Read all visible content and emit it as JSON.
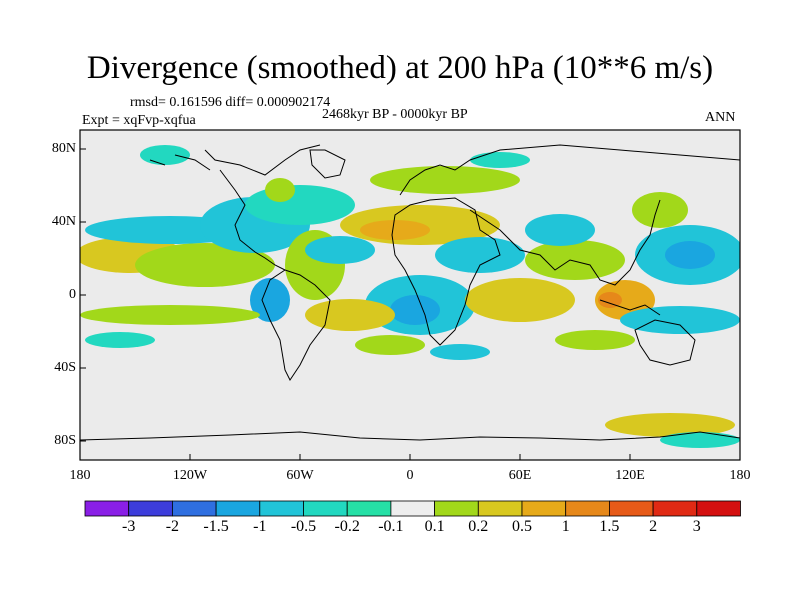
{
  "map": {
    "title": "Divergence (smoothed) at 200 hPa (10**6 m/s)",
    "stats": "rmsd= 0.161596 diff= 0.000902174",
    "period": "2468kyr BP - 0000kyr BP",
    "expt": "Expt = xqFvp-xqfua",
    "season": "ANN",
    "lat_ticks": [
      "80N",
      "40N",
      "0",
      "40S",
      "80S"
    ],
    "lon_ticks": [
      "180",
      "120W",
      "60W",
      "0",
      "60E",
      "120E",
      "180"
    ]
  },
  "legend": {
    "labels": [
      "-3",
      "-2",
      "-1.5",
      "-1",
      "-0.5",
      "-0.2",
      "-0.1",
      "0.1",
      "0.2",
      "0.5",
      "1",
      "1.5",
      "2",
      "3"
    ],
    "colors": [
      "#8a1fe6",
      "#3d3ddb",
      "#2f6fe0",
      "#1aa6e0",
      "#21c4d8",
      "#22d8c0",
      "#26e0a6",
      "#eeeeee",
      "#a2d81a",
      "#d8c820",
      "#e6aa1a",
      "#e6881a",
      "#e65a18",
      "#e02a14",
      "#d41010"
    ]
  },
  "colors": {
    "land_bg": "#ebebeb",
    "neg_weak": "#22d8c0",
    "neg_mid": "#21c4d8",
    "neg_strong": "#1aa6e0",
    "pos_weak": "#a2d81a",
    "pos_mid": "#d8c820",
    "pos_strong": "#e6aa1a",
    "pos_max": "#e6881a"
  }
}
